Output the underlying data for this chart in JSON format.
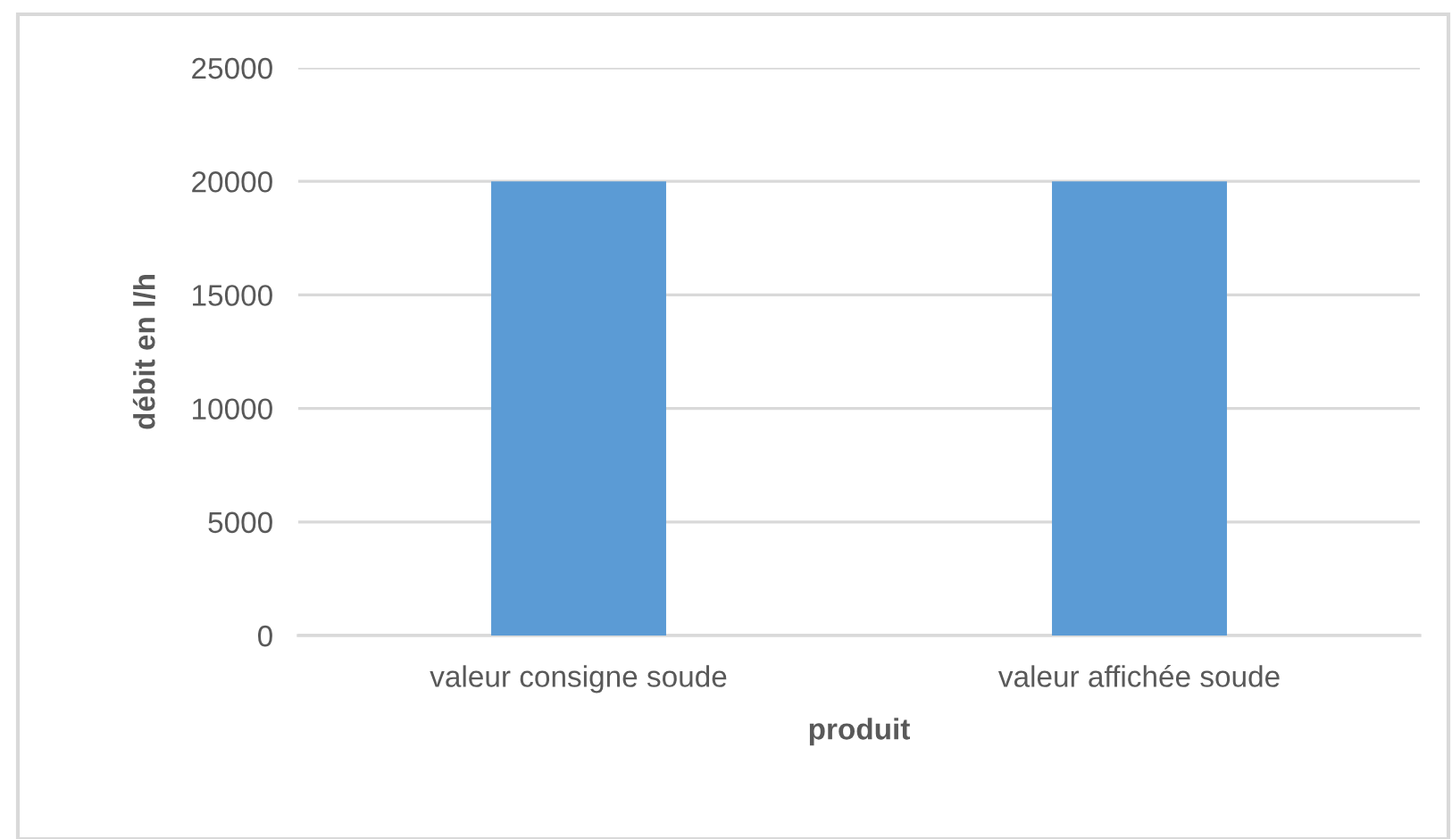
{
  "chart_data": {
    "type": "bar",
    "categories": [
      "valeur consigne soude",
      "valeur affichée soude"
    ],
    "values": [
      20000,
      20000
    ],
    "color": "#5b9bd5",
    "xlabel": "produit",
    "ylabel": "débit en l/h",
    "ylim": [
      0,
      25000
    ],
    "yticks": [
      0,
      5000,
      10000,
      15000,
      20000,
      25000
    ],
    "grid": "y",
    "legend": false
  }
}
